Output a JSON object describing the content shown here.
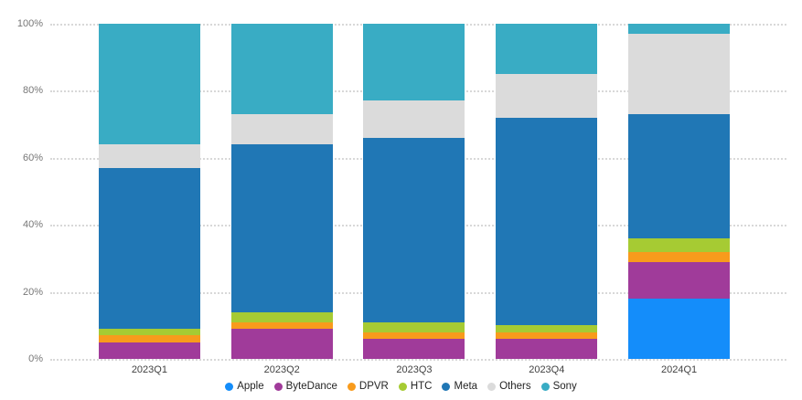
{
  "chart_data": {
    "type": "bar",
    "variant": "stacked-percent",
    "title": "",
    "xlabel": "",
    "ylabel": "",
    "categories": [
      "2023Q1",
      "2023Q2",
      "2023Q3",
      "2023Q4",
      "2024Q1"
    ],
    "series": [
      {
        "name": "Apple",
        "color": "#148DFA",
        "values": [
          0,
          0,
          0,
          0,
          18
        ]
      },
      {
        "name": "ByteDance",
        "color": "#A03B9A",
        "values": [
          5,
          9,
          6,
          6,
          11
        ]
      },
      {
        "name": "DPVR",
        "color": "#F89B1C",
        "values": [
          2,
          2,
          2,
          2,
          3
        ]
      },
      {
        "name": "HTC",
        "color": "#A6CB33",
        "values": [
          2,
          3,
          3,
          2,
          4
        ]
      },
      {
        "name": "Meta",
        "color": "#2077B5",
        "values": [
          48,
          50,
          55,
          62,
          37
        ]
      },
      {
        "name": "Others",
        "color": "#DBDBDB",
        "values": [
          7,
          9,
          11,
          13,
          24
        ]
      },
      {
        "name": "Sony",
        "color": "#39ACC4",
        "values": [
          36,
          27,
          23,
          15,
          3
        ]
      }
    ],
    "stack_order_bottom_to_top": [
      "Apple",
      "ByteDance",
      "DPVR",
      "HTC",
      "Meta",
      "Others",
      "Sony"
    ],
    "y_ticks": [
      "100%",
      "80%",
      "60%",
      "40%",
      "20%",
      "0%"
    ],
    "ylim": [
      0,
      100
    ],
    "grid": "horizontal-dotted",
    "gridline_color": "#D8D8D8",
    "axis_label_color": "#777777",
    "category_label_color": "#424242",
    "legend_position": "bottom-center"
  }
}
